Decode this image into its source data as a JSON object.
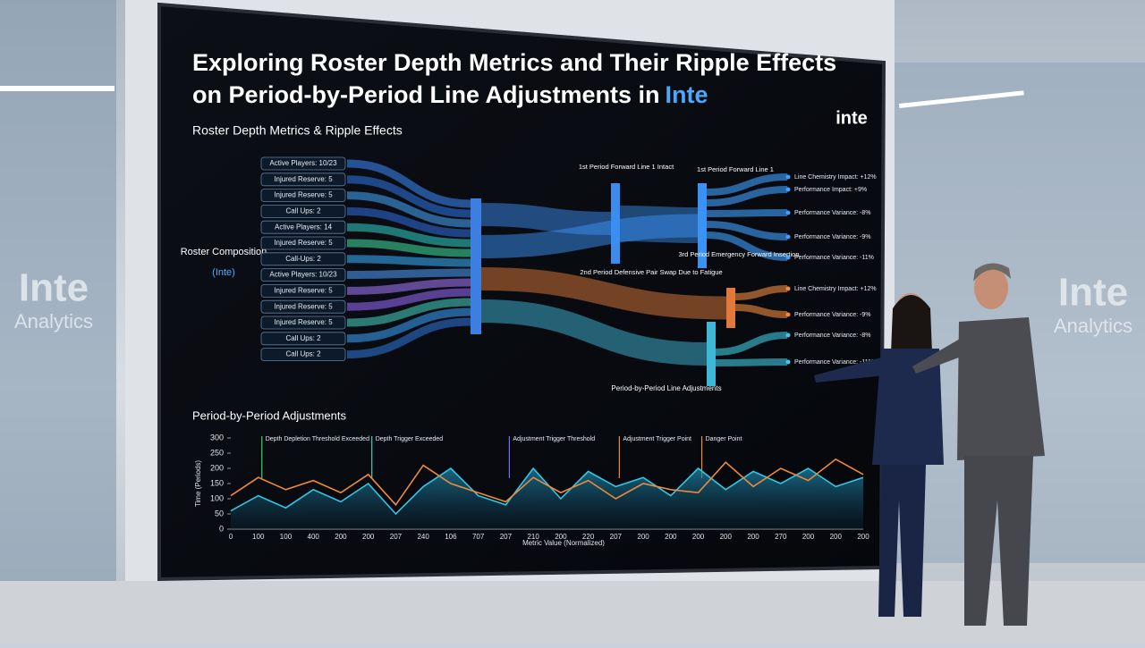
{
  "screen": {
    "title_line1": "Exploring Roster Depth Metrics and Their Ripple Effects",
    "title_line2": "on Period-by-Period Line Adjustments in",
    "title_brand": "Inte",
    "logo": "inte",
    "sankey": {
      "title": "Roster Depth Metrics & Ripple Effects",
      "source_label": "Roster Composition",
      "source_sub": "(Inte)",
      "inputs": [
        "Active Players: 10/23",
        "Injured Reserve: 5",
        "Injured Reserve: 5",
        "Call Ups: 2",
        "Active Players: 14",
        "Injured Reserve: 5",
        "Call-Ups: 2",
        "Active Players: 10/23",
        "Injured Reserve: 5",
        "Injured Reserve: 5",
        "Injured Reserve: 5",
        "Call Ups: 2",
        "Call Ups: 2"
      ],
      "nodes": [
        "1st Period Forward Line 1 Intact",
        "1st Period Forward Line 1",
        "2nd Period Defensive Pair Swap Due to Fatigue",
        "3rd Period Emergency Forward Insertion"
      ],
      "outputs": [
        "Line Chemistry Impact: +12%",
        "Performance Impact: +9%",
        "Performance Variance: -8%",
        "Performance Variance: -9%",
        "Performance Variance: -11%",
        "Line Chemistry Impact: +12%",
        "Performance Variance: -9%",
        "Performance Variance: -8%",
        "Performance Variance: -11%"
      ],
      "bottom_label": "Period-by-Period Line Adjustments"
    }
  },
  "wall_logo": [
    "Inte",
    "Analytics"
  ],
  "chart_data": {
    "type": "line",
    "title": "Period-by-Period Adjustments",
    "y_label": "Time (Periods)",
    "x_label": "Metric Value (Normalized)",
    "categories": [
      "0",
      "100",
      "100",
      "400",
      "200",
      "200",
      "207",
      "240",
      "106",
      "707",
      "207",
      "210",
      "200",
      "220",
      "207",
      "200",
      "200",
      "200",
      "200",
      "200",
      "270",
      "200",
      "200",
      "200"
    ],
    "ylim": [
      0,
      300
    ],
    "yticks": [
      0,
      50,
      100,
      150,
      200,
      250,
      300
    ],
    "annotations": [
      "Depth Depletion Threshold Exceeded",
      "Depth Trigger Exceeded",
      "Adjustment Trigger Threshold",
      "Adjustment Trigger Point",
      "Danger Point"
    ],
    "series": [
      {
        "color": "#f08a3c",
        "values": [
          110,
          170,
          130,
          160,
          120,
          180,
          80,
          210,
          150,
          120,
          90,
          170,
          120,
          160,
          100,
          150,
          130,
          120,
          220,
          140,
          200,
          160,
          230,
          180
        ]
      },
      {
        "color": "#34c6e2",
        "values": [
          60,
          110,
          70,
          130,
          90,
          150,
          50,
          140,
          200,
          110,
          80,
          200,
          100,
          190,
          140,
          170,
          110,
          200,
          130,
          190,
          150,
          200,
          140,
          170
        ]
      }
    ]
  }
}
